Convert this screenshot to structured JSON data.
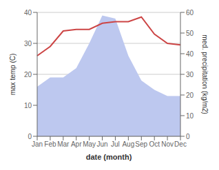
{
  "chart_data": {
    "type": "line",
    "categories": [
      "Jan",
      "Feb",
      "Mar",
      "Apr",
      "May",
      "Jun",
      "Jul",
      "Aug",
      "Sep",
      "Oct",
      "Nov",
      "Dec"
    ],
    "series": [
      {
        "type": "area",
        "color": "#bdc8ef",
        "axis": "y2",
        "values": [
          24,
          28.5,
          28.5,
          33,
          45,
          58.5,
          57,
          39,
          27,
          22.5,
          19.5,
          19.5
        ]
      },
      {
        "type": "line",
        "color": "#cc4444",
        "values": [
          26,
          29,
          34,
          34.5,
          34.5,
          36.5,
          37,
          37,
          38.5,
          33,
          30,
          29.5
        ]
      }
    ],
    "xlabel": "date (month)",
    "ylabel": "max temp (C)",
    "y2label": "med. precipitation (kg/m2)",
    "ylim": [
      0,
      40
    ],
    "yticks": [
      0,
      10,
      20,
      30,
      40
    ],
    "y2lim": [
      0,
      60
    ],
    "y2ticks": [
      0,
      10,
      20,
      30,
      40,
      50,
      60
    ],
    "grid": true
  }
}
